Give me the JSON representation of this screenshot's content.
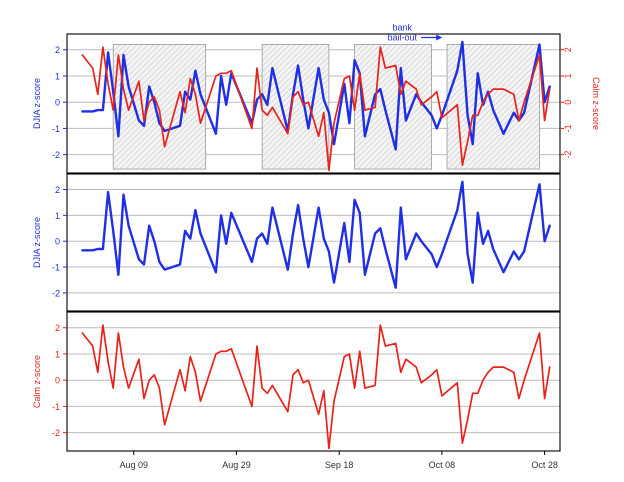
{
  "colors": {
    "djia": "#1f2fe6",
    "calm": "#e8231c",
    "gridline": "#bdbdbd",
    "shade_stroke": "#9a9a9a",
    "shade_hatch": "#c8c8c8"
  },
  "chart_data": [
    {
      "type": "line",
      "panel": "top",
      "ylabel_left": "DJIA z-score",
      "ylabel_right": "Calm z-score",
      "ylim": [
        -2.7,
        2.6
      ],
      "yticks": [
        -2,
        -1,
        0,
        1,
        2
      ],
      "grid": true,
      "shaded_periods": [
        {
          "start": "Aug 05",
          "end": "Aug 23"
        },
        {
          "start": "Sep 03",
          "end": "Sep 16"
        },
        {
          "start": "Sep 21",
          "end": "Oct 06"
        },
        {
          "start": "Oct 09",
          "end": "Oct 27"
        }
      ],
      "annotations": [
        {
          "text": "bank bail-out",
          "line1": "bank",
          "line2": "bail-out",
          "date": "Oct 03",
          "y": 2.2
        }
      ],
      "series": [
        {
          "key": "djia",
          "axis": "left"
        },
        {
          "key": "calm",
          "axis": "right"
        }
      ]
    },
    {
      "type": "line",
      "panel": "middle",
      "ylabel": "DJIA z-score",
      "ylim": [
        -2.7,
        2.6
      ],
      "yticks": [
        -2,
        -1,
        0,
        1,
        2
      ],
      "grid": true,
      "series": [
        {
          "key": "djia"
        }
      ]
    },
    {
      "type": "line",
      "panel": "bottom",
      "ylabel": "Calm z-score",
      "ylim": [
        -2.7,
        2.6
      ],
      "yticks": [
        -2,
        -1,
        0,
        1,
        2
      ],
      "grid": true,
      "series": [
        {
          "key": "calm"
        }
      ]
    }
  ],
  "shared_x": {
    "xlim": [
      "Jul 27",
      "Oct 31"
    ],
    "tick_dates": [
      "Aug 09",
      "Aug 29",
      "Sep 18",
      "Oct 08",
      "Oct 28"
    ],
    "tick_labels": [
      "Aug 09",
      "Aug 29",
      "Sep 18",
      "Oct 08",
      "Oct 28"
    ]
  },
  "series_data": {
    "djia": {
      "dates": [
        "Jul 30",
        "Aug 01",
        "Aug 02",
        "Aug 03",
        "Aug 04",
        "Aug 05",
        "Aug 06",
        "Aug 07",
        "Aug 08",
        "Aug 10",
        "Aug 11",
        "Aug 12",
        "Aug 13",
        "Aug 14",
        "Aug 15",
        "Aug 18",
        "Aug 19",
        "Aug 20",
        "Aug 21",
        "Aug 22",
        "Aug 25",
        "Aug 26",
        "Aug 27",
        "Aug 28",
        "Sep 01",
        "Sep 02",
        "Sep 03",
        "Sep 04",
        "Sep 05",
        "Sep 08",
        "Sep 09",
        "Sep 10",
        "Sep 11",
        "Sep 12",
        "Sep 14",
        "Sep 15",
        "Sep 16",
        "Sep 17",
        "Sep 19",
        "Sep 20",
        "Sep 21",
        "Sep 22",
        "Sep 23",
        "Sep 25",
        "Sep 26",
        "Sep 27",
        "Sep 29",
        "Sep 30",
        "Oct 01",
        "Oct 03",
        "Oct 04",
        "Oct 06",
        "Oct 07",
        "Oct 08",
        "Oct 11",
        "Oct 12",
        "Oct 13",
        "Oct 14",
        "Oct 15",
        "Oct 16",
        "Oct 17",
        "Oct 18",
        "Oct 20",
        "Oct 22",
        "Oct 23",
        "Oct 24",
        "Oct 27",
        "Oct 28",
        "Oct 29"
      ],
      "values": [
        -0.35,
        -0.35,
        -0.3,
        -0.3,
        1.9,
        0.4,
        -1.3,
        1.8,
        0.6,
        -0.7,
        -0.9,
        0.6,
        0.0,
        -0.8,
        -1.1,
        -0.9,
        0.4,
        0.1,
        1.2,
        0.3,
        -1.2,
        1.0,
        -0.1,
        1.1,
        -0.8,
        0.1,
        0.3,
        -0.1,
        1.3,
        -1.1,
        0.3,
        1.4,
        0.1,
        -1.0,
        1.3,
        0.1,
        -0.4,
        -1.6,
        0.7,
        -0.8,
        1.6,
        1.1,
        -1.3,
        0.3,
        0.5,
        -0.3,
        -1.8,
        1.3,
        -0.7,
        0.3,
        0.0,
        -0.5,
        -1.0,
        -0.5,
        1.2,
        2.3,
        -0.5,
        -1.6,
        1.1,
        -0.1,
        0.4,
        -0.3,
        -1.2,
        -0.4,
        -0.7,
        -0.4,
        2.2,
        0.0,
        0.6
      ]
    },
    "calm": {
      "dates": [
        "Jul 30",
        "Aug 01",
        "Aug 02",
        "Aug 03",
        "Aug 04",
        "Aug 05",
        "Aug 06",
        "Aug 07",
        "Aug 08",
        "Aug 10",
        "Aug 11",
        "Aug 12",
        "Aug 13",
        "Aug 14",
        "Aug 15",
        "Aug 18",
        "Aug 19",
        "Aug 20",
        "Aug 21",
        "Aug 22",
        "Aug 25",
        "Aug 26",
        "Aug 27",
        "Aug 28",
        "Sep 01",
        "Sep 02",
        "Sep 03",
        "Sep 04",
        "Sep 05",
        "Sep 08",
        "Sep 09",
        "Sep 10",
        "Sep 11",
        "Sep 12",
        "Sep 14",
        "Sep 15",
        "Sep 16",
        "Sep 17",
        "Sep 19",
        "Sep 20",
        "Sep 21",
        "Sep 22",
        "Sep 23",
        "Sep 25",
        "Sep 26",
        "Sep 27",
        "Sep 29",
        "Sep 30",
        "Oct 01",
        "Oct 03",
        "Oct 04",
        "Oct 06",
        "Oct 07",
        "Oct 08",
        "Oct 11",
        "Oct 12",
        "Oct 13",
        "Oct 14",
        "Oct 15",
        "Oct 16",
        "Oct 17",
        "Oct 18",
        "Oct 20",
        "Oct 22",
        "Oct 23",
        "Oct 24",
        "Oct 27",
        "Oct 28",
        "Oct 29"
      ],
      "values": [
        1.8,
        1.3,
        0.3,
        2.1,
        0.7,
        -0.3,
        1.8,
        0.5,
        -0.3,
        0.8,
        -0.7,
        0.0,
        0.2,
        -0.3,
        -1.7,
        0.4,
        -0.4,
        0.9,
        0.3,
        -0.8,
        1.0,
        1.1,
        1.1,
        1.2,
        -1.0,
        1.3,
        -0.3,
        -0.5,
        -0.2,
        -1.2,
        0.2,
        0.4,
        -0.1,
        0.0,
        -1.3,
        -0.4,
        -2.6,
        -0.8,
        0.9,
        1.0,
        -0.3,
        1.1,
        -0.3,
        -0.2,
        2.1,
        1.3,
        1.4,
        0.3,
        0.8,
        0.5,
        -0.1,
        0.2,
        0.4,
        -0.6,
        -0.1,
        -2.4,
        -1.5,
        -0.5,
        -0.5,
        0.0,
        0.3,
        0.5,
        0.5,
        0.3,
        -0.7,
        0.0,
        1.8,
        -0.7,
        0.5
      ]
    }
  }
}
